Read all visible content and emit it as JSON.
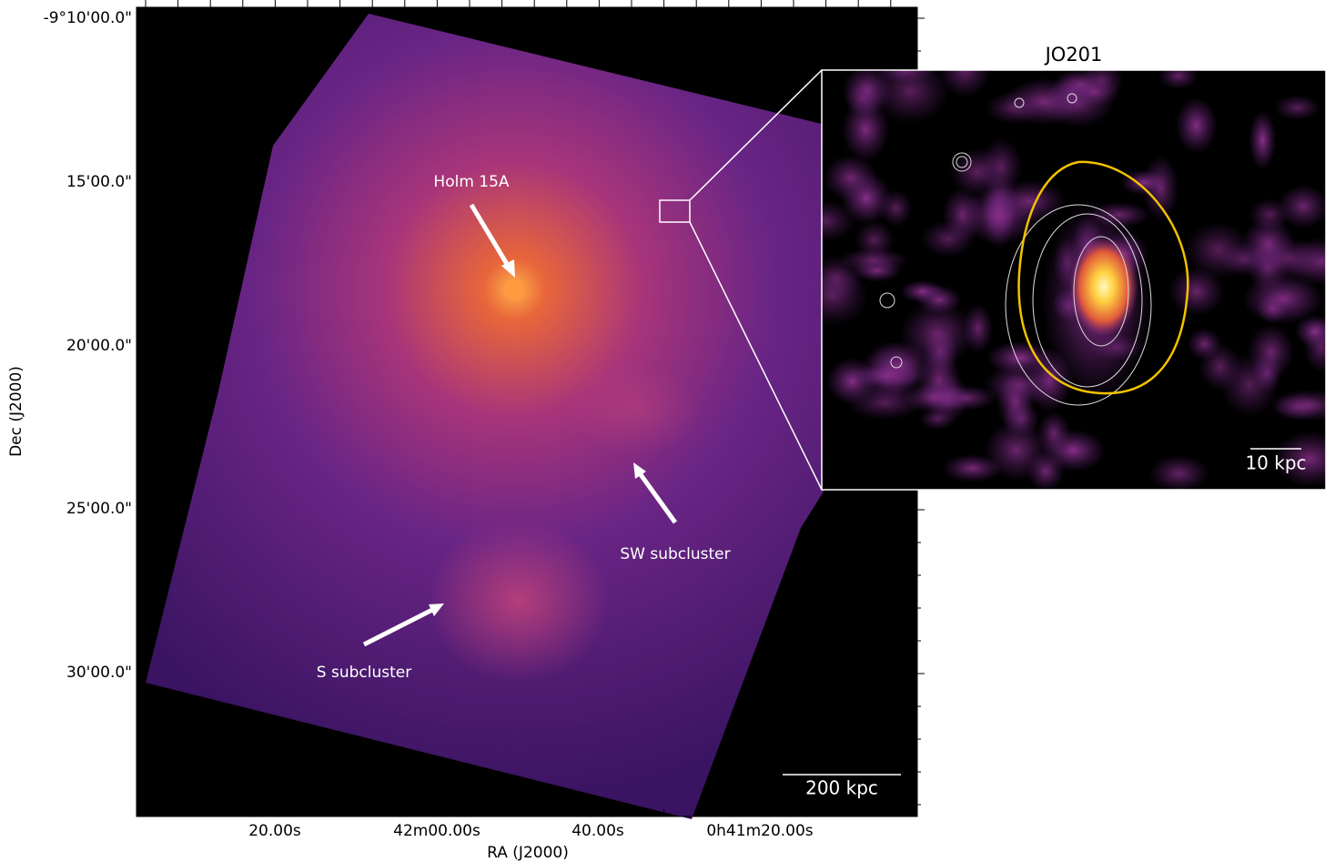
{
  "figure": {
    "title": "JO201",
    "x_axis": {
      "label": "RA (J2000)",
      "ticks": [
        "20.00s",
        "42m00.00s",
        "40.00s",
        "0h41m20.00s"
      ]
    },
    "y_axis": {
      "label": "Dec (J2000)",
      "ticks": [
        "-9°10'00.0\"",
        "15'00.0\"",
        "20'00.0\"",
        "25'00.0\"",
        "30'00.0\""
      ]
    },
    "annotations": [
      "Holm 15A",
      "SW subcluster",
      "S subcluster"
    ],
    "scale_bars": [
      "200 kpc",
      "10 kpc"
    ]
  }
}
